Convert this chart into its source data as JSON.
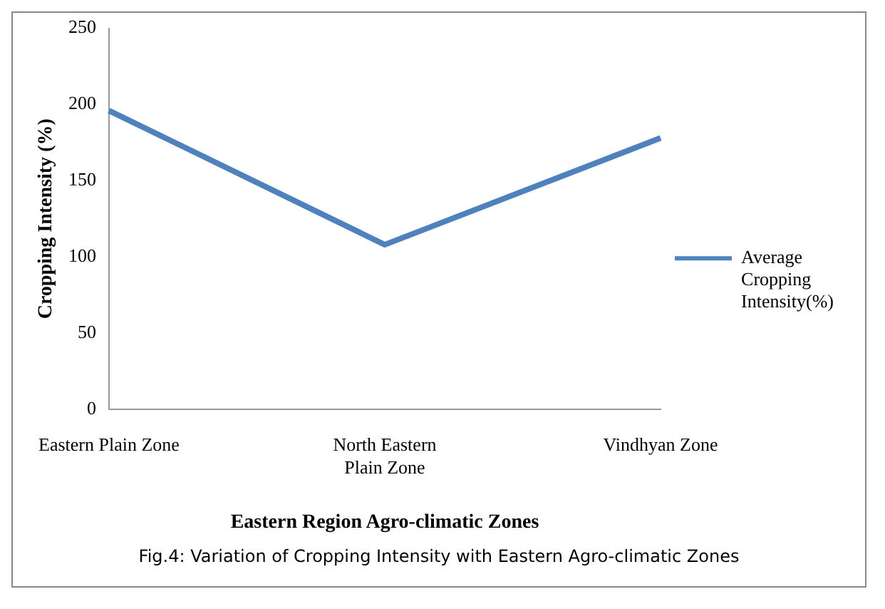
{
  "chart_data": {
    "type": "line",
    "xlabel": "Eastern Region Agro-climatic Zones",
    "ylabel": "Cropping Intensity (%)",
    "categories": [
      "Eastern Plain Zone",
      "North Eastern Plain Zone",
      "Vindhyan Zone"
    ],
    "series": [
      {
        "name": "Average Cropping Intensity(%)",
        "color": "#4f81bd",
        "values": [
          196,
          108,
          178
        ]
      }
    ],
    "ylim": [
      0,
      250
    ],
    "yticks": [
      0,
      50,
      100,
      150,
      200,
      250
    ],
    "grid": false,
    "legend": "right",
    "marker": "none",
    "annotations": [
      "Fig.4: Variation of Cropping Intensity with Eastern Agro-climatic Zones"
    ]
  }
}
